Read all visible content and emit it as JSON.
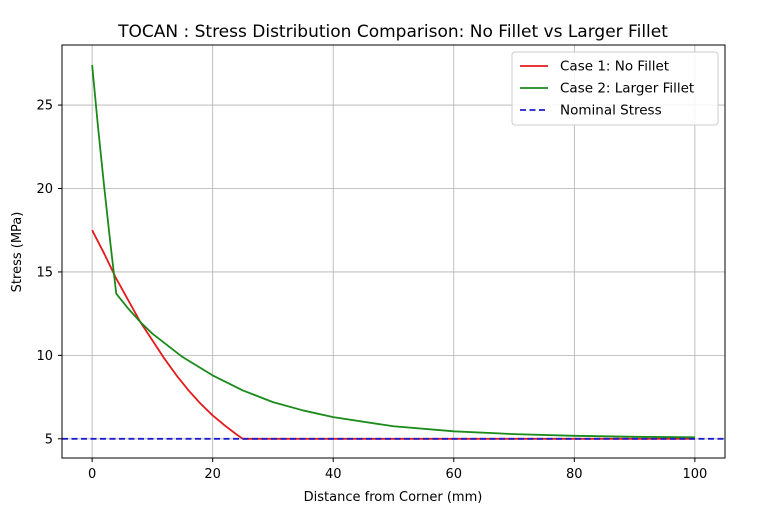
{
  "chart_data": {
    "type": "line",
    "title": "TOCAN : Stress Distribution Comparison: No Fillet vs Larger Fillet",
    "xlabel": "Distance from Corner (mm)",
    "ylabel": "Stress (MPa)",
    "xlim": [
      -5,
      105
    ],
    "ylim": [
      3.85,
      28.6
    ],
    "xticks": [
      0,
      20,
      40,
      60,
      80,
      100
    ],
    "yticks": [
      5,
      10,
      15,
      20,
      25
    ],
    "grid": true,
    "legend_position": "top-right",
    "series": [
      {
        "name": "Case 1: No Fillet",
        "color": "#e41a1c",
        "style": "solid",
        "x": [
          0,
          2,
          4,
          6,
          8,
          10,
          12,
          14,
          16,
          18,
          20,
          22,
          24,
          25,
          30,
          40,
          50,
          60,
          70,
          80,
          90,
          100
        ],
        "y": [
          17.5,
          16.1,
          14.6,
          13.3,
          12.0,
          10.9,
          9.8,
          8.8,
          7.9,
          7.1,
          6.4,
          5.8,
          5.25,
          5.0,
          5.0,
          5.0,
          5.0,
          5.0,
          5.0,
          5.0,
          5.0,
          5.0
        ]
      },
      {
        "name": "Case 2: Larger Fillet",
        "color": "#1a8a1a",
        "style": "solid",
        "x": [
          0,
          1,
          2,
          3,
          4,
          6,
          8,
          10,
          15,
          20,
          25,
          30,
          35,
          40,
          50,
          60,
          70,
          80,
          90,
          100
        ],
        "y": [
          27.4,
          23.6,
          20.1,
          16.8,
          13.7,
          12.8,
          12.0,
          11.3,
          9.9,
          8.8,
          7.9,
          7.2,
          6.7,
          6.3,
          5.75,
          5.45,
          5.28,
          5.18,
          5.12,
          5.09
        ]
      },
      {
        "name": "Nominal Stress",
        "color": "#1f1fcc",
        "style": "dashed",
        "x": [
          -5,
          105
        ],
        "y": [
          5.0,
          5.0
        ]
      }
    ]
  }
}
